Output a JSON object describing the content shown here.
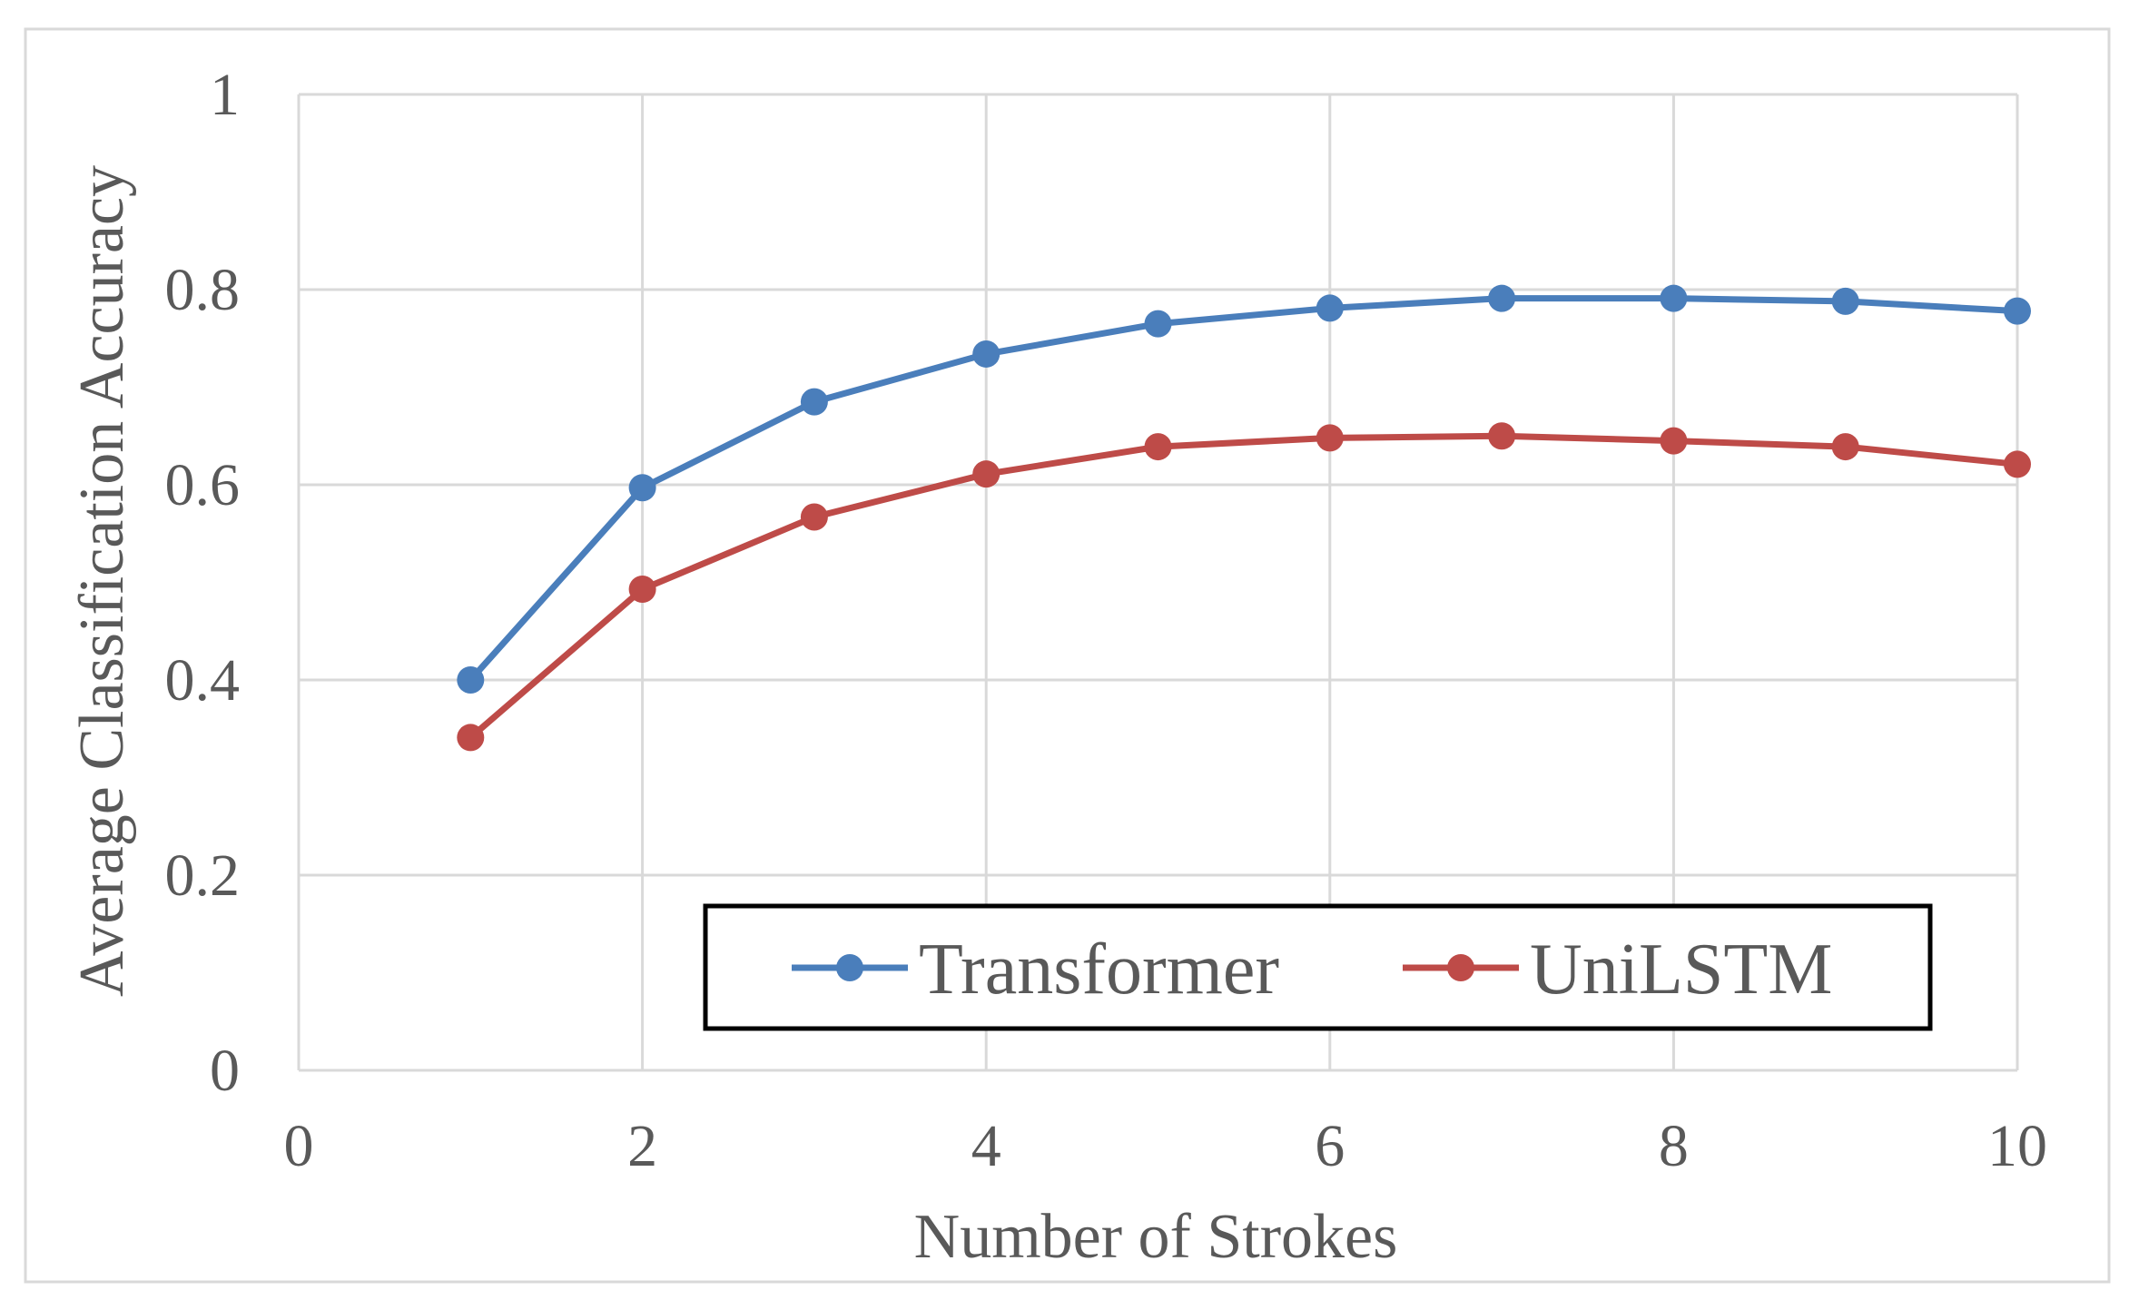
{
  "chart_data": {
    "type": "line",
    "xlabel": "Number of Strokes",
    "ylabel": "Average Classification Accuracy",
    "xlim": [
      0,
      10
    ],
    "ylim": [
      0,
      1
    ],
    "xticks": [
      "0",
      "2",
      "4",
      "6",
      "8",
      "10"
    ],
    "yticks": [
      "0",
      "0.2",
      "0.4",
      "0.6",
      "0.8",
      "1"
    ],
    "grid": true,
    "legend_position": "bottom-right, inside plot area, boxed",
    "x": [
      1,
      2,
      3,
      4,
      5,
      6,
      7,
      8,
      9,
      10
    ],
    "series": [
      {
        "name": "Transformer",
        "color": "#4a7ebb",
        "values": [
          0.4,
          0.597,
          0.685,
          0.734,
          0.765,
          0.781,
          0.791,
          0.791,
          0.788,
          0.778
        ]
      },
      {
        "name": "UniLSTM",
        "color": "#be4b48",
        "values": [
          0.341,
          0.493,
          0.567,
          0.611,
          0.639,
          0.648,
          0.65,
          0.645,
          0.639,
          0.621
        ]
      }
    ]
  }
}
